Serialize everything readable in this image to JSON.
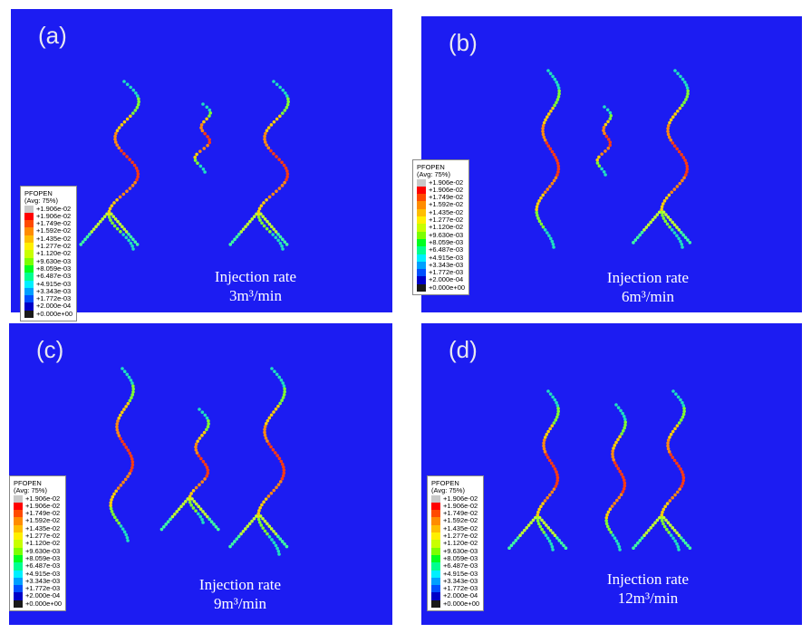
{
  "panels": [
    {
      "label": "(a)",
      "caption": "Injection rate",
      "rate": "3m³/min"
    },
    {
      "label": "(b)",
      "caption": "Injection rate",
      "rate": "6m³/min"
    },
    {
      "label": "(c)",
      "caption": "Injection rate",
      "rate": "9m³/min"
    },
    {
      "label": "(d)",
      "caption": "Injection rate",
      "rate": "12m³/min"
    }
  ],
  "legend": {
    "title": "PFOPEN",
    "subtitle": "(Avg: 75%)",
    "entries": [
      "+1.906e-02",
      "+1.906e-02",
      "+1.749e-02",
      "+1.592e-02",
      "+1.435e-02",
      "+1.277e-02",
      "+1.120e-02",
      "+9.630e-03",
      "+8.059e-03",
      "+6.487e-03",
      "+4.915e-03",
      "+3.343e-03",
      "+1.772e-03",
      "+2.000e-04",
      "+0.000e+00"
    ]
  }
}
